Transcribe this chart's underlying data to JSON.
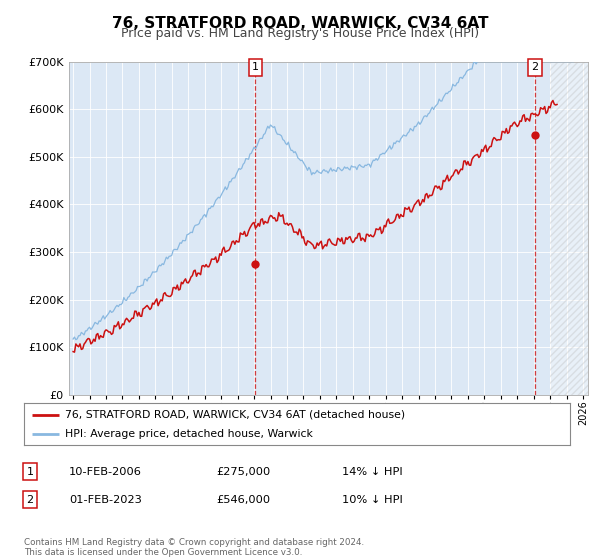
{
  "title": "76, STRATFORD ROAD, WARWICK, CV34 6AT",
  "subtitle": "Price paid vs. HM Land Registry's House Price Index (HPI)",
  "title_fontsize": 11,
  "subtitle_fontsize": 9,
  "bg_color": "#dce8f5",
  "outer_bg": "#f0f0f0",
  "hpi_color": "#89b8e0",
  "price_color": "#cc1111",
  "marker_color": "#cc1111",
  "sale1_year": 2006.08,
  "sale1_price": 275000,
  "sale2_year": 2023.08,
  "sale2_price": 546000,
  "legend_label_price": "76, STRATFORD ROAD, WARWICK, CV34 6AT (detached house)",
  "legend_label_hpi": "HPI: Average price, detached house, Warwick",
  "annotation1_label": "1",
  "annotation1_date": "10-FEB-2006",
  "annotation1_price": "£275,000",
  "annotation1_pct": "14% ↓ HPI",
  "annotation2_label": "2",
  "annotation2_date": "01-FEB-2023",
  "annotation2_price": "£546,000",
  "annotation2_pct": "10% ↓ HPI",
  "footer": "Contains HM Land Registry data © Crown copyright and database right 2024.\nThis data is licensed under the Open Government Licence v3.0.",
  "ylim": [
    0,
    700000
  ],
  "xlim_start": 1994.75,
  "xlim_end": 2026.3,
  "hatch_start": 2024.0
}
